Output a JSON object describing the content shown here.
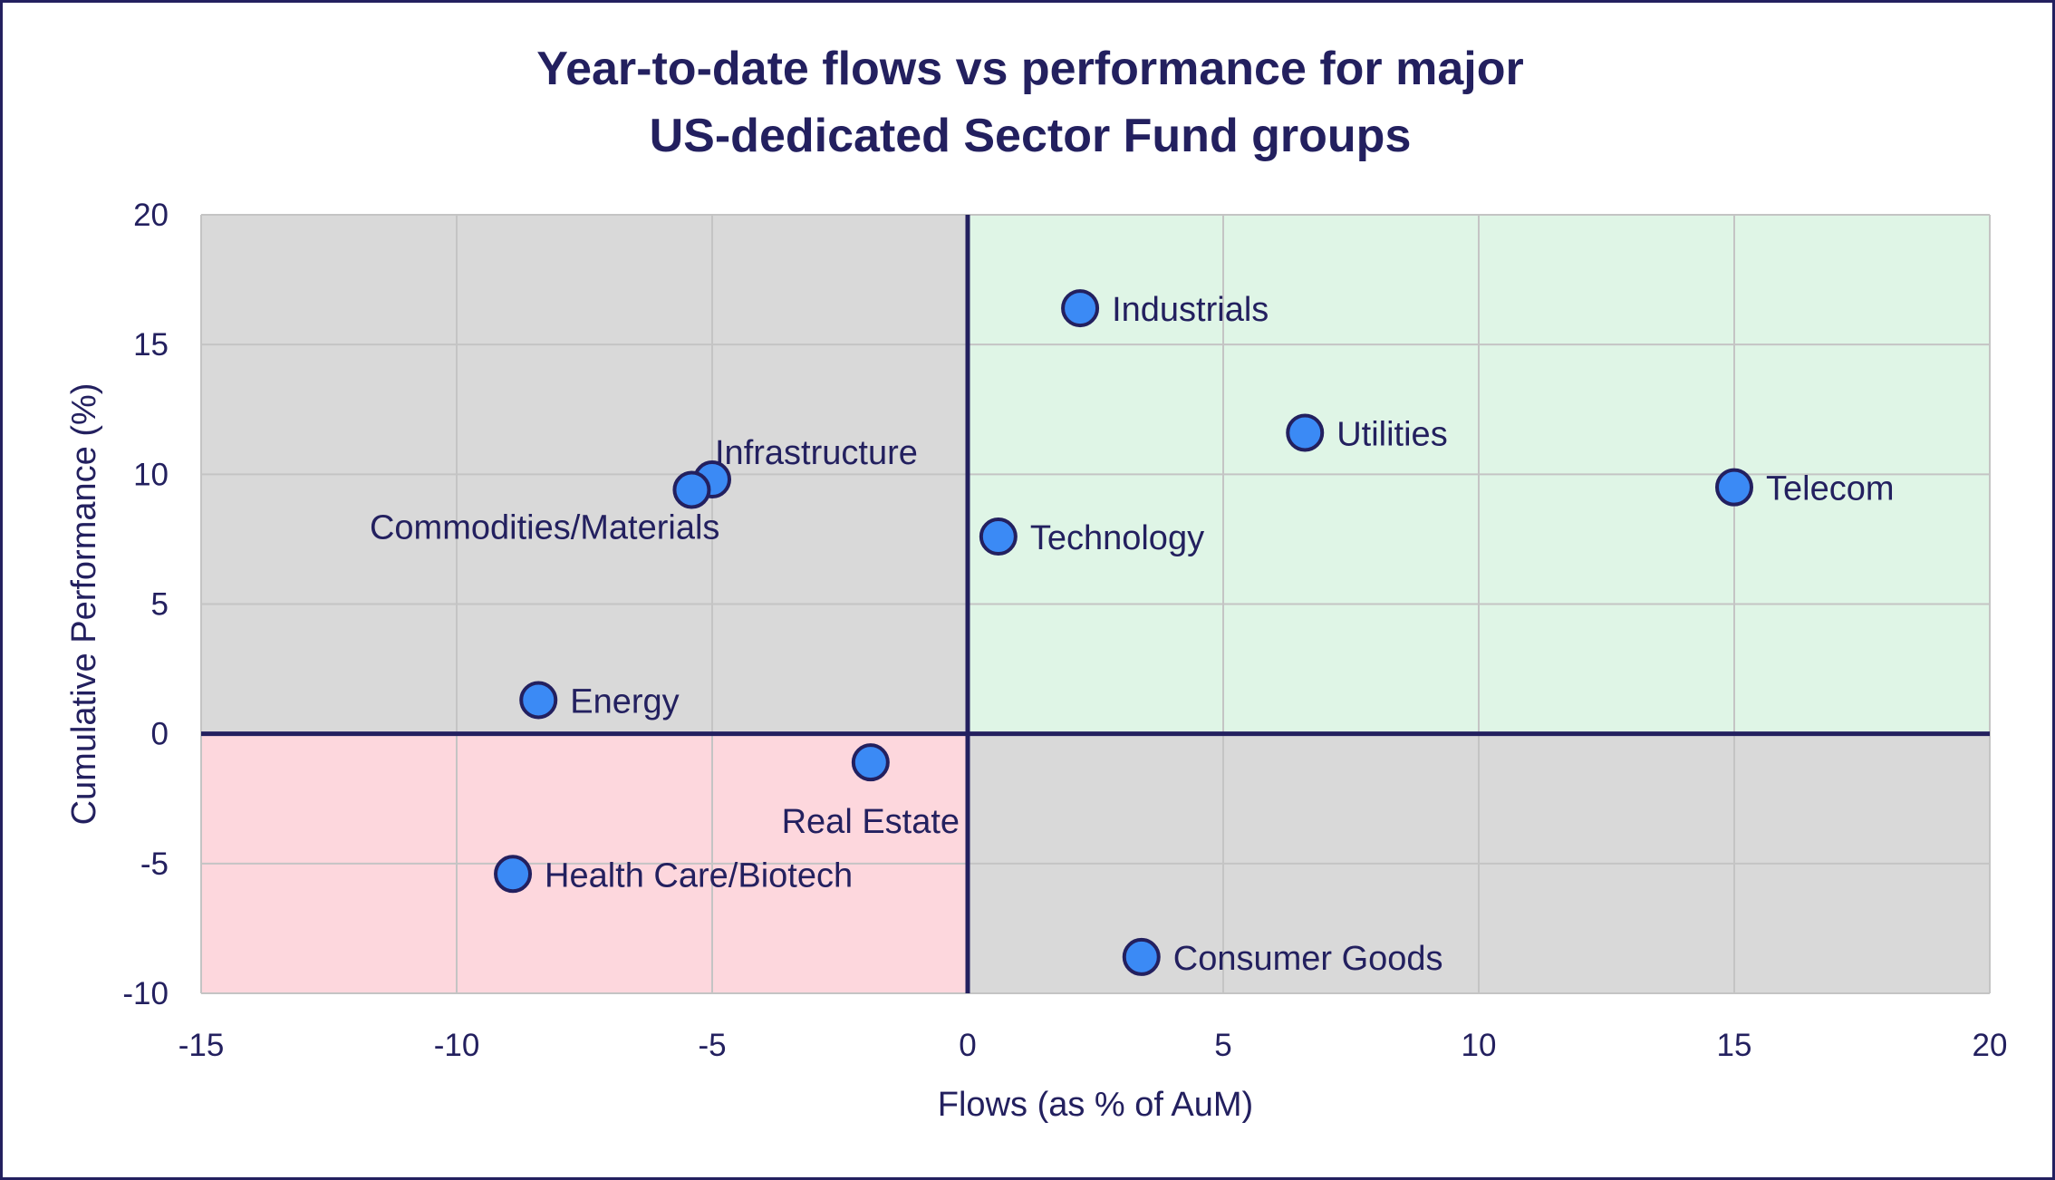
{
  "chart_data": {
    "type": "scatter",
    "title_lines": [
      "Year-to-date flows vs performance for major",
      "US-dedicated Sector Fund groups"
    ],
    "xlabel": "Flows (as % of AuM)",
    "ylabel": "Cumulative Performance (%)",
    "xlim": [
      -15,
      20
    ],
    "ylim": [
      -10,
      20
    ],
    "xticks": [
      -15,
      -10,
      -5,
      0,
      5,
      10,
      15,
      20
    ],
    "yticks": [
      -10,
      -5,
      0,
      5,
      10,
      15,
      20
    ],
    "grid": true,
    "quadrant_colors": {
      "top_left": "#d9d9d9",
      "top_right": "#dff5e6",
      "bottom_left": "#fdd7dd",
      "bottom_right": "#d9d9d9"
    },
    "colors": {
      "point_fill": "#3b8af5",
      "point_stroke": "#23205f",
      "text": "#23205f",
      "axis_line": "#23205f",
      "grid": "#c4c4c4"
    },
    "points": [
      {
        "label": "Industrials",
        "x": 2.2,
        "y": 16.4,
        "label_pos": "right"
      },
      {
        "label": "Utilities",
        "x": 6.6,
        "y": 11.6,
        "label_pos": "right"
      },
      {
        "label": "Telecom",
        "x": 15.0,
        "y": 9.5,
        "label_pos": "right"
      },
      {
        "label": "Technology",
        "x": 0.6,
        "y": 7.6,
        "label_pos": "right"
      },
      {
        "label": "Infrastructure",
        "x": -5.0,
        "y": 9.8,
        "label_pos": "above-right"
      },
      {
        "label": "Commodities/Materials",
        "x": -5.4,
        "y": 9.4,
        "label_pos": "below-left"
      },
      {
        "label": "Energy",
        "x": -8.4,
        "y": 1.3,
        "label_pos": "right"
      },
      {
        "label": "Real Estate",
        "x": -1.9,
        "y": -1.1,
        "label_pos": "below"
      },
      {
        "label": "Health Care/Biotech",
        "x": -8.9,
        "y": -5.4,
        "label_pos": "right"
      },
      {
        "label": "Consumer Goods",
        "x": 3.4,
        "y": -8.6,
        "label_pos": "right"
      }
    ]
  }
}
